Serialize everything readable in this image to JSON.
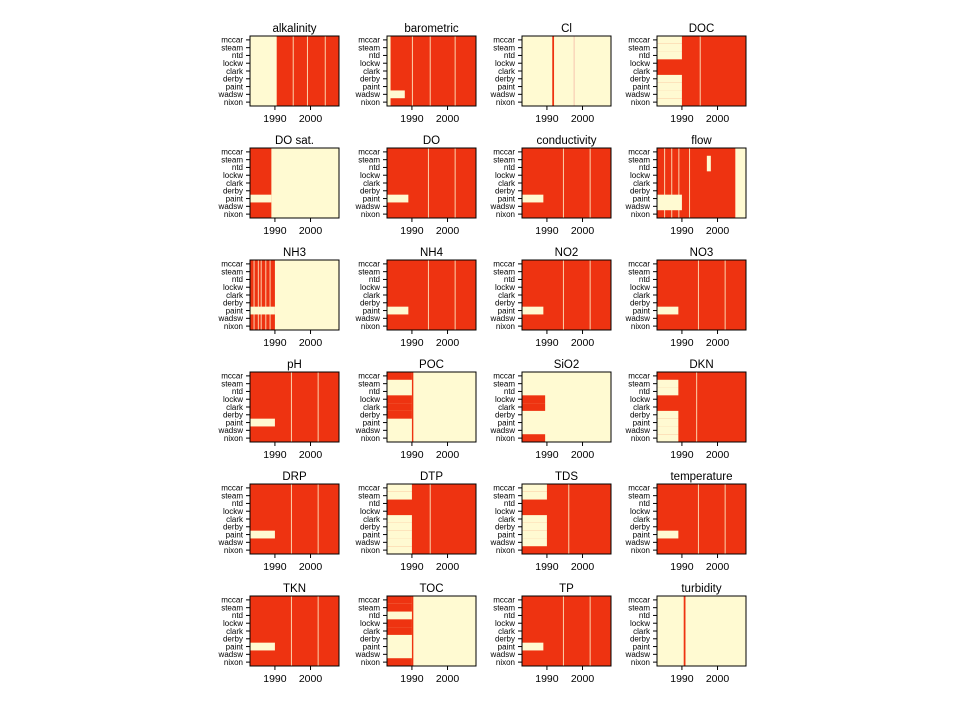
{
  "colors": {
    "present": "#ee3311",
    "missing": "#fffad2",
    "frame": "#000000"
  },
  "chart_data": {
    "type": "heatmap",
    "description_note": "",
    "sites": [
      "mccar",
      "steam",
      "ntd",
      "lockw",
      "clark",
      "derby",
      "paint",
      "wadsw",
      "nixon"
    ],
    "x_ticks": [
      1990,
      2000
    ],
    "xlim": [
      1983,
      2008
    ],
    "panels": [
      {
        "title": "alkalinity",
        "pattern": "late",
        "start": 1990.5,
        "streaks": [
          1995,
          1999,
          2004
        ]
      },
      {
        "title": "barometric",
        "pattern": "mostly",
        "start": 1984,
        "gap_rows": [
          7
        ],
        "gap_end": 1988,
        "streaks": [
          1990,
          1995,
          2002
        ]
      },
      {
        "title": "Cl",
        "pattern": "spike",
        "spikes": [
          1991.5
        ],
        "faint": [
          1997.5
        ]
      },
      {
        "title": "DOC",
        "pattern": "rows_early_gap",
        "start": 1990.5,
        "gap_rows": [
          0,
          1,
          2,
          5,
          6,
          7,
          8
        ],
        "gap_end": 1990,
        "streaks": [
          1995
        ]
      },
      {
        "title": "DO sat.",
        "pattern": "early",
        "end": 1989
      },
      {
        "title": "DO",
        "pattern": "full_paint_gap",
        "gap_end": 1989
      },
      {
        "title": "conductivity",
        "pattern": "full_paint_gap",
        "gap_end": 1989
      },
      {
        "title": "flow",
        "pattern": "flow"
      },
      {
        "title": "NH3",
        "pattern": "nh3",
        "end": 1990
      },
      {
        "title": "NH4",
        "pattern": "full_paint_gap",
        "gap_end": 1989
      },
      {
        "title": "NO2",
        "pattern": "full_paint_gap",
        "gap_end": 1989
      },
      {
        "title": "NO3",
        "pattern": "full_paint_gap",
        "gap_end": 1989
      },
      {
        "title": "pH",
        "pattern": "full_paint_gap",
        "gap_end": 1990
      },
      {
        "title": "POC",
        "pattern": "rows_early_then_missing",
        "rows": [
          0,
          3,
          4,
          5
        ],
        "end": 1990,
        "line": 1990
      },
      {
        "title": "SiO2",
        "pattern": "rows_early_then_missing",
        "rows": [
          3,
          4,
          8
        ],
        "end": 1989.5
      },
      {
        "title": "DKN",
        "pattern": "rows_early_gap",
        "start": 1989,
        "gap_rows": [
          1,
          2,
          5,
          6,
          7,
          8
        ],
        "gap_end": 1989,
        "streaks": [
          1994
        ]
      },
      {
        "title": "DRP",
        "pattern": "full_paint_gap",
        "gap_end": 1990
      },
      {
        "title": "DTP",
        "pattern": "rows_early_gap",
        "start": 1990.5,
        "gap_rows": [
          0,
          1,
          4,
          5,
          6,
          7,
          8
        ],
        "gap_end": 1990,
        "streaks": [
          1995
        ]
      },
      {
        "title": "TDS",
        "pattern": "rows_early_gap",
        "start": 1990,
        "gap_rows": [
          0,
          1,
          4,
          5,
          6,
          7
        ],
        "gap_end": 1990,
        "streaks": [
          1996
        ]
      },
      {
        "title": "temperature",
        "pattern": "full_paint_gap",
        "gap_end": 1989
      },
      {
        "title": "TKN",
        "pattern": "full_paint_gap",
        "gap_end": 1990
      },
      {
        "title": "TOC",
        "pattern": "rows_early_then_missing",
        "rows": [
          0,
          1,
          3,
          4,
          8
        ],
        "end": 1990,
        "line": 1990
      },
      {
        "title": "TP",
        "pattern": "full_paint_gap",
        "gap_end": 1989
      },
      {
        "title": "turbidity",
        "pattern": "spike",
        "spikes": [
          1990.5
        ]
      }
    ]
  }
}
